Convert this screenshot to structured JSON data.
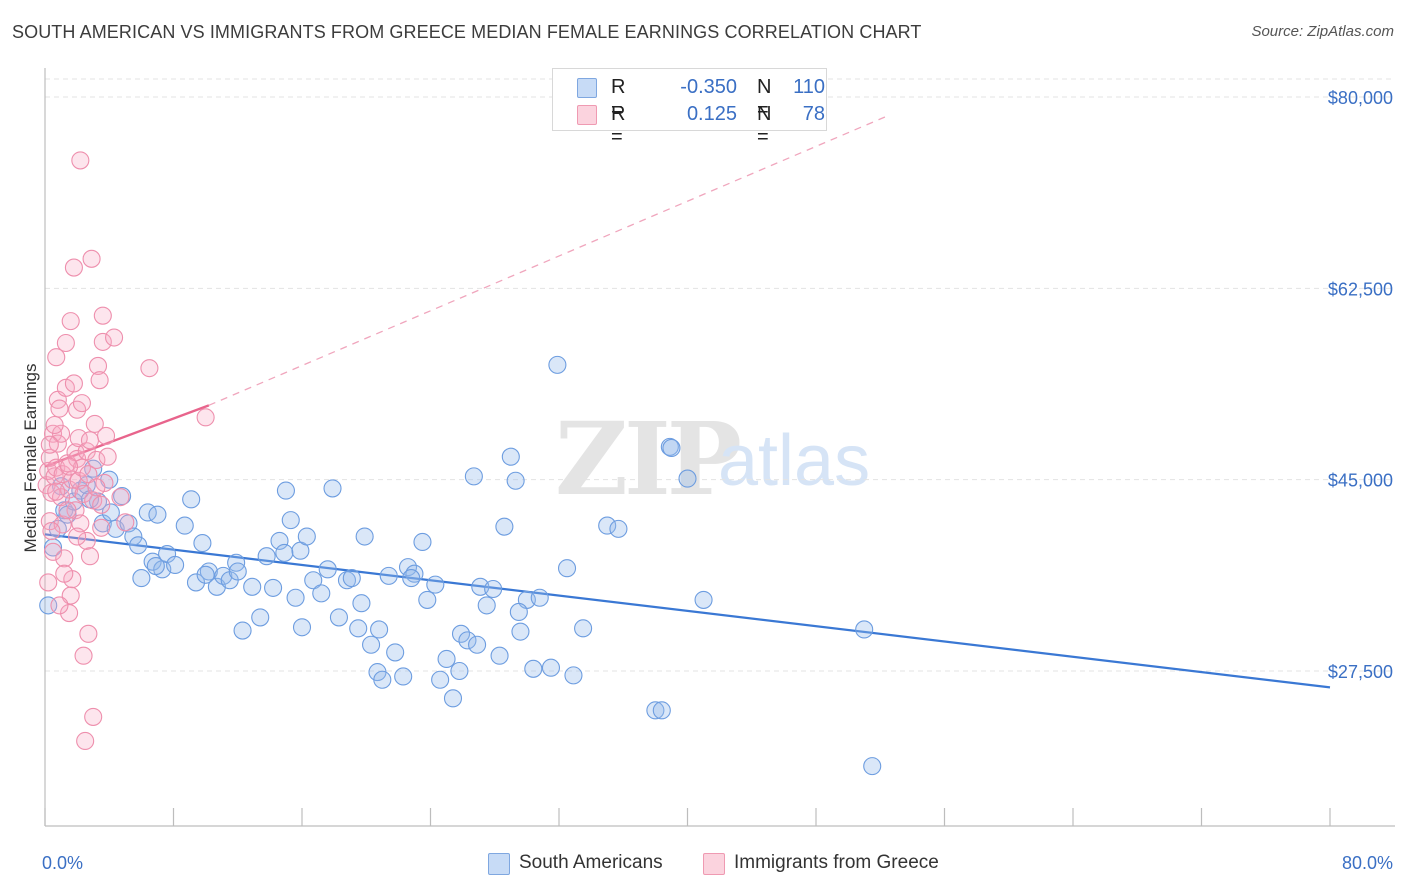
{
  "title": "SOUTH AMERICAN VS IMMIGRANTS FROM GREECE MEDIAN FEMALE EARNINGS CORRELATION CHART",
  "source": "Source: ZipAtlas.com",
  "watermark": {
    "zip": "ZIP",
    "atlas": "atlas"
  },
  "legend": {
    "rows": [
      {
        "r_label": "R =",
        "r_value": "-0.350",
        "n_label": "N =",
        "n_value": "110",
        "color": "#a9c6ef"
      },
      {
        "r_label": "R =",
        "r_value": "0.125",
        "n_label": "N =",
        "n_value": "78",
        "color": "#f7b6c8"
      }
    ]
  },
  "bottom_legend": {
    "items": [
      {
        "label": "South Americans",
        "color": "#a9c6ef"
      },
      {
        "label": "Immigrants from Greece",
        "color": "#f7b6c8"
      }
    ]
  },
  "chart_data": {
    "type": "scatter",
    "title": "SOUTH AMERICAN VS IMMIGRANTS FROM GREECE MEDIAN FEMALE EARNINGS CORRELATION CHART",
    "xlabel": "",
    "ylabel": "Median Female Earnings",
    "xlim": [
      0,
      80
    ],
    "ylim": [
      10000,
      82000
    ],
    "x_tick_labels": [
      "0.0%",
      "80.0%"
    ],
    "y_ticks": [
      27500,
      45000,
      62500,
      80000
    ],
    "y_tick_labels": [
      "$27,500",
      "$45,000",
      "$62,500",
      "$80,000"
    ],
    "grid": true,
    "legend_position": "top-center",
    "colors": {
      "blue": "#3a78d4",
      "pink": "#e8648c"
    },
    "series": [
      {
        "name": "South Americans",
        "color": "#3a78d4",
        "trend": {
          "x": [
            0,
            80
          ],
          "y": [
            40000,
            26000
          ],
          "style": "solid"
        },
        "points": [
          [
            0.2,
            33500
          ],
          [
            0.5,
            38800
          ],
          [
            0.8,
            40500
          ],
          [
            1.2,
            42200
          ],
          [
            1.4,
            41800
          ],
          [
            1.8,
            43000
          ],
          [
            2.2,
            44000
          ],
          [
            2.6,
            44500
          ],
          [
            3.0,
            46000
          ],
          [
            3.3,
            43000
          ],
          [
            3.6,
            41000
          ],
          [
            4.0,
            45000
          ],
          [
            4.4,
            40500
          ],
          [
            4.8,
            43500
          ],
          [
            5.2,
            41000
          ],
          [
            5.5,
            39800
          ],
          [
            6.0,
            36000
          ],
          [
            6.4,
            42000
          ],
          [
            6.7,
            37500
          ],
          [
            7.0,
            41800
          ],
          [
            7.3,
            36800
          ],
          [
            7.6,
            38200
          ],
          [
            8.1,
            37200
          ],
          [
            8.7,
            40800
          ],
          [
            9.1,
            43200
          ],
          [
            9.4,
            35600
          ],
          [
            9.8,
            39200
          ],
          [
            10.2,
            36600
          ],
          [
            10.7,
            35200
          ],
          [
            11.1,
            36200
          ],
          [
            11.5,
            35800
          ],
          [
            11.9,
            37400
          ],
          [
            12.3,
            31200
          ],
          [
            12.9,
            35200
          ],
          [
            13.4,
            32400
          ],
          [
            13.8,
            38000
          ],
          [
            14.2,
            35100
          ],
          [
            14.6,
            39400
          ],
          [
            15.0,
            44000
          ],
          [
            15.3,
            41300
          ],
          [
            15.6,
            34200
          ],
          [
            15.9,
            38500
          ],
          [
            16.3,
            39800
          ],
          [
            16.7,
            35800
          ],
          [
            17.2,
            34600
          ],
          [
            17.6,
            36800
          ],
          [
            17.9,
            44200
          ],
          [
            18.3,
            32400
          ],
          [
            18.8,
            35800
          ],
          [
            19.1,
            36000
          ],
          [
            19.5,
            31400
          ],
          [
            19.9,
            39800
          ],
          [
            20.3,
            29900
          ],
          [
            20.7,
            27400
          ],
          [
            21.0,
            26700
          ],
          [
            21.4,
            36200
          ],
          [
            21.8,
            29200
          ],
          [
            22.3,
            27000
          ],
          [
            22.6,
            37000
          ],
          [
            23.0,
            36400
          ],
          [
            23.5,
            39300
          ],
          [
            23.8,
            34000
          ],
          [
            24.3,
            35400
          ],
          [
            24.6,
            26700
          ],
          [
            25.0,
            28600
          ],
          [
            25.4,
            25000
          ],
          [
            25.9,
            30900
          ],
          [
            26.3,
            30300
          ],
          [
            26.7,
            45300
          ],
          [
            27.1,
            35200
          ],
          [
            27.5,
            33500
          ],
          [
            27.9,
            35000
          ],
          [
            28.3,
            28900
          ],
          [
            28.6,
            40700
          ],
          [
            29.0,
            47100
          ],
          [
            29.3,
            44900
          ],
          [
            29.6,
            31100
          ],
          [
            30.0,
            34000
          ],
          [
            30.4,
            27700
          ],
          [
            30.8,
            34200
          ],
          [
            31.5,
            27800
          ],
          [
            31.9,
            55500
          ],
          [
            32.5,
            36900
          ],
          [
            32.9,
            27100
          ],
          [
            35.0,
            40800
          ],
          [
            35.7,
            40500
          ],
          [
            38.0,
            23900
          ],
          [
            38.4,
            23900
          ],
          [
            38.9,
            48000
          ],
          [
            40.0,
            45100
          ],
          [
            41.0,
            34000
          ],
          [
            51.0,
            31300
          ],
          [
            51.5,
            18800
          ],
          [
            1.0,
            44400
          ],
          [
            2.8,
            43200
          ],
          [
            10.0,
            36300
          ],
          [
            20.8,
            31300
          ],
          [
            25.8,
            27500
          ],
          [
            39.0,
            47900
          ],
          [
            6.9,
            37100
          ],
          [
            4.1,
            42000
          ],
          [
            12.0,
            36600
          ],
          [
            16.0,
            31500
          ],
          [
            19.7,
            33700
          ],
          [
            22.8,
            36000
          ],
          [
            26.9,
            29900
          ],
          [
            29.5,
            32900
          ],
          [
            33.5,
            31400
          ],
          [
            5.8,
            39000
          ],
          [
            14.9,
            38300
          ]
        ]
      },
      {
        "name": "Immigrants from Greece",
        "color": "#e8648c",
        "trend": {
          "x": [
            0,
            10.2
          ],
          "y": [
            46200,
            51800
          ],
          "style": "solid"
        },
        "trend_extension": {
          "x": [
            10.2,
            52.5
          ],
          "y": [
            51800,
            78300
          ],
          "style": "dashed"
        },
        "points": [
          [
            0.1,
            44500
          ],
          [
            0.2,
            45800
          ],
          [
            0.3,
            41200
          ],
          [
            0.3,
            47000
          ],
          [
            0.4,
            43800
          ],
          [
            0.5,
            49200
          ],
          [
            0.5,
            38400
          ],
          [
            0.6,
            45300
          ],
          [
            0.7,
            46100
          ],
          [
            0.7,
            56200
          ],
          [
            0.8,
            52300
          ],
          [
            0.8,
            48300
          ],
          [
            0.9,
            51500
          ],
          [
            1.0,
            49200
          ],
          [
            1.0,
            43400
          ],
          [
            1.1,
            45500
          ],
          [
            1.1,
            40900
          ],
          [
            1.2,
            37800
          ],
          [
            1.3,
            57500
          ],
          [
            1.3,
            53400
          ],
          [
            1.4,
            46500
          ],
          [
            1.5,
            44100
          ],
          [
            1.5,
            32800
          ],
          [
            1.6,
            34400
          ],
          [
            1.6,
            59500
          ],
          [
            1.7,
            45000
          ],
          [
            1.7,
            35900
          ],
          [
            1.8,
            64400
          ],
          [
            1.9,
            47500
          ],
          [
            1.9,
            42200
          ],
          [
            2.0,
            51400
          ],
          [
            2.0,
            46900
          ],
          [
            2.1,
            48800
          ],
          [
            2.1,
            44900
          ],
          [
            2.2,
            74200
          ],
          [
            2.2,
            41000
          ],
          [
            2.3,
            46100
          ],
          [
            2.4,
            43700
          ],
          [
            2.4,
            28900
          ],
          [
            2.5,
            21100
          ],
          [
            2.6,
            47600
          ],
          [
            2.6,
            39400
          ],
          [
            2.7,
            45500
          ],
          [
            2.8,
            48600
          ],
          [
            2.8,
            38000
          ],
          [
            2.9,
            65200
          ],
          [
            3.0,
            43100
          ],
          [
            3.0,
            23300
          ],
          [
            3.1,
            50100
          ],
          [
            3.2,
            46800
          ],
          [
            3.3,
            55400
          ],
          [
            3.4,
            54100
          ],
          [
            3.5,
            42700
          ],
          [
            3.6,
            60000
          ],
          [
            3.6,
            57600
          ],
          [
            3.7,
            44700
          ],
          [
            3.8,
            49000
          ],
          [
            3.9,
            47100
          ],
          [
            4.3,
            58000
          ],
          [
            4.7,
            43400
          ],
          [
            5.0,
            41100
          ],
          [
            6.5,
            55200
          ],
          [
            10.0,
            50700
          ],
          [
            0.2,
            35600
          ],
          [
            0.4,
            40300
          ],
          [
            0.6,
            50000
          ],
          [
            0.9,
            33500
          ],
          [
            1.2,
            36400
          ],
          [
            1.4,
            42200
          ],
          [
            1.8,
            53800
          ],
          [
            2.3,
            52000
          ],
          [
            2.7,
            30900
          ],
          [
            3.2,
            44300
          ],
          [
            3.5,
            40600
          ],
          [
            0.3,
            48200
          ],
          [
            0.7,
            43900
          ],
          [
            1.5,
            46200
          ],
          [
            2.0,
            39800
          ]
        ]
      }
    ]
  }
}
